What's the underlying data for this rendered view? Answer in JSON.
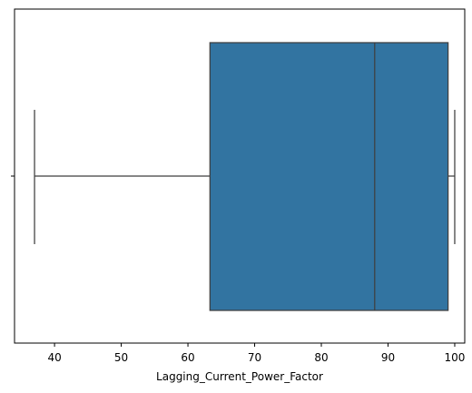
{
  "chart_data": {
    "type": "boxplot",
    "orientation": "horizontal",
    "title": "",
    "xlabel": "Lagging_Current_Power_Factor",
    "ylabel": "",
    "xlim": [
      34,
      101.5
    ],
    "xticks": [
      40,
      50,
      60,
      70,
      80,
      90,
      100
    ],
    "xtick_labels": [
      "40",
      "50",
      "60",
      "70",
      "80",
      "90",
      "100"
    ],
    "grid": false,
    "box": {
      "whisker_low": 37,
      "q1": 63.3,
      "median": 88,
      "q3": 99,
      "whisker_high": 100,
      "fill_color": "#3274a1",
      "line_color": "#3f3f3f"
    }
  }
}
